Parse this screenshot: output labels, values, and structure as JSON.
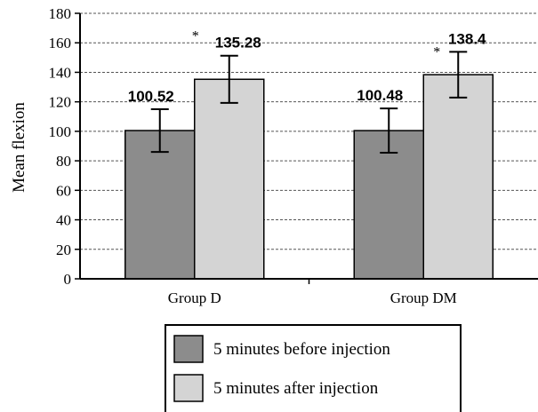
{
  "chart_data": {
    "type": "bar",
    "categories": [
      "Group D",
      "Group DM"
    ],
    "series": [
      {
        "name": "5 minutes before injection",
        "values": [
          100.52,
          100.48
        ],
        "error": [
          14.5,
          15
        ],
        "color": "#8c8c8c"
      },
      {
        "name": "5 minutes after injection",
        "values": [
          135.28,
          138.4
        ],
        "error": [
          16,
          15.5
        ],
        "color": "#d4d4d4"
      }
    ],
    "data_labels": [
      [
        "100.52",
        "100.48"
      ],
      [
        "135.28",
        "138.4"
      ]
    ],
    "significance_marker": "*",
    "ylabel": "Mean flexion",
    "xlabel": "",
    "ylim": [
      0,
      180
    ],
    "yticks": [
      0,
      20,
      40,
      60,
      80,
      100,
      120,
      140,
      160,
      180
    ],
    "grid": true,
    "legend_position": "bottom"
  }
}
